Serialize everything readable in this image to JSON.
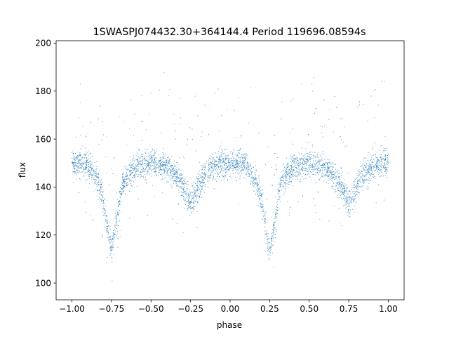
{
  "chart_data": {
    "type": "scatter",
    "title": "1SWASPJ074432.30+364144.4 Period 119696.08594s",
    "xlabel": "phase",
    "ylabel": "flux",
    "xlim": [
      -1.1,
      1.1
    ],
    "ylim": [
      93,
      201
    ],
    "xticks": [
      -1.0,
      -0.75,
      -0.5,
      -0.25,
      0.0,
      0.25,
      0.5,
      0.75,
      1.0
    ],
    "xtick_labels": [
      "−1.00",
      "−0.75",
      "−0.50",
      "−0.25",
      "0.00",
      "0.25",
      "0.50",
      "0.75",
      "1.00"
    ],
    "yticks": [
      100,
      120,
      140,
      160,
      180,
      200
    ],
    "ytick_labels": [
      "100",
      "120",
      "140",
      "160",
      "180",
      "200"
    ],
    "grid": false,
    "marker_color": "#1f77b4",
    "light_curve": {
      "phase": [
        -1.0,
        -0.9,
        -0.82,
        -0.78,
        -0.75,
        -0.72,
        -0.68,
        -0.6,
        -0.5,
        -0.4,
        -0.32,
        -0.28,
        -0.25,
        -0.22,
        -0.18,
        -0.1,
        0.0,
        0.1,
        0.18,
        0.22,
        0.25,
        0.28,
        0.32,
        0.4,
        0.5,
        0.6,
        0.68,
        0.72,
        0.75,
        0.78,
        0.82,
        0.9,
        1.0
      ],
      "flux": [
        150,
        149,
        140,
        125,
        113,
        125,
        142,
        148,
        150,
        148,
        143,
        137,
        133,
        137,
        143,
        149,
        150,
        149,
        140,
        125,
        113,
        125,
        142,
        148,
        150,
        148,
        143,
        137,
        133,
        137,
        143,
        149,
        150
      ]
    }
  }
}
